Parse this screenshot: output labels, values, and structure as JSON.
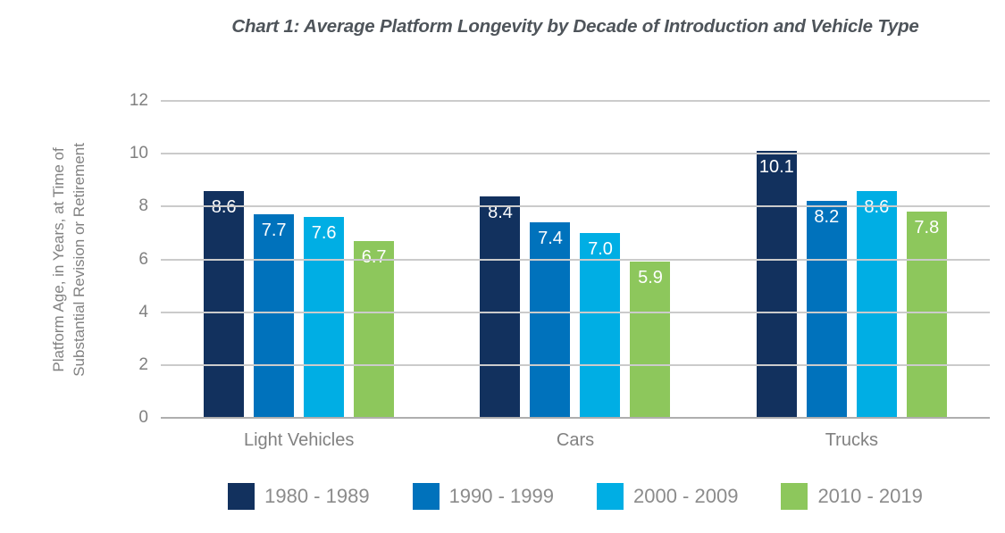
{
  "chart_data": {
    "type": "bar",
    "title": "Chart 1: Average Platform Longevity by Decade of Introduction and Vehicle Type",
    "xlabel": "",
    "ylabel": "Platform Age, in Years, at Time of Substantial Revision or Retirement",
    "ylabel_lines": [
      "Platform Age, in Years, at Time of",
      "Substantial Revision or Retirement"
    ],
    "categories": [
      "Light Vehicles",
      "Cars",
      "Trucks"
    ],
    "series": [
      {
        "name": "1980 - 1989",
        "color": "#12315e",
        "values": [
          8.6,
          8.4,
          10.1
        ]
      },
      {
        "name": "1990 - 1999",
        "color": "#0072bc",
        "values": [
          7.7,
          7.4,
          8.2
        ]
      },
      {
        "name": "2000 - 2009",
        "color": "#00aee4",
        "values": [
          7.6,
          7.0,
          8.6
        ]
      },
      {
        "name": "2010 - 2019",
        "color": "#8dc75c",
        "values": [
          6.7,
          5.9,
          7.8
        ]
      }
    ],
    "ylim": [
      0,
      12
    ],
    "yticks": [
      0,
      2,
      4,
      6,
      8,
      10,
      12
    ],
    "grid": true,
    "legend_position": "bottom",
    "value_labels": "inside-top, one decimal"
  },
  "colors": {
    "title_text": "#4e545a",
    "axis_text": "#808080",
    "gridline": "#cbcbcb",
    "baseline": "#aeaeae",
    "value_label_text": "#ffffff",
    "legend_text": "#8b8b8b",
    "background": "#ffffff"
  }
}
